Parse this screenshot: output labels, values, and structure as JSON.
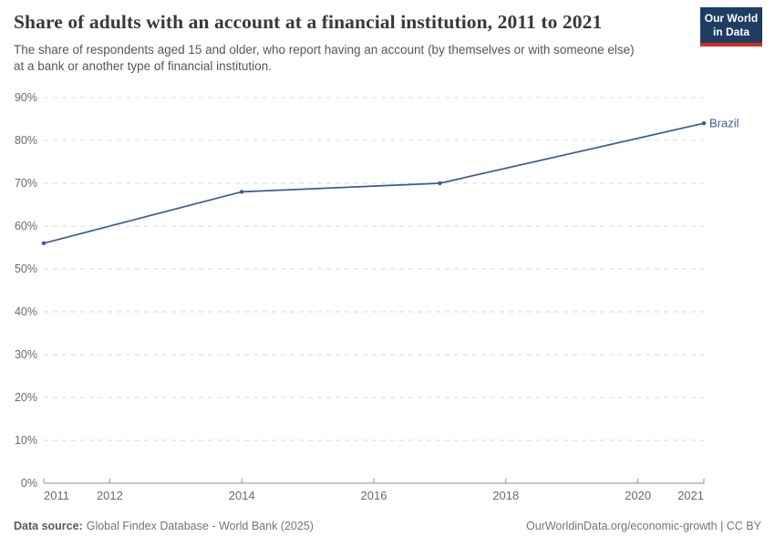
{
  "logo": {
    "line1": "Our World",
    "line2": "in Data"
  },
  "chart_data": {
    "type": "line",
    "title": "Share of adults with an account at a financial institution, 2011 to 2021",
    "subtitle": "The share of respondents aged 15 and older, who report having an account (by themselves or with someone else) at a bank or another type of financial institution.",
    "x": [
      2011,
      2014,
      2017,
      2021
    ],
    "series": [
      {
        "name": "Brazil",
        "values": [
          56,
          68,
          70,
          84
        ],
        "color": "#3c5a96"
      }
    ],
    "xlim": [
      2011,
      2021
    ],
    "ylim": [
      0,
      90
    ],
    "xticks": [
      2011,
      2012,
      2014,
      2016,
      2018,
      2020,
      2021
    ],
    "yticks": [
      0,
      10,
      20,
      30,
      40,
      50,
      60,
      70,
      80,
      90
    ],
    "ytick_suffix": "%",
    "xlabel": "",
    "ylabel": "",
    "grid": "horizontal-dashed",
    "legend_position": "end-of-line-label"
  },
  "footer": {
    "datasource_label": "Data source:",
    "datasource_value": "Global Findex Database - World Bank (2025)",
    "attribution": "OurWorldinData.org/economic-growth | CC BY"
  },
  "colors": {
    "line": "#3c5a96",
    "grid": "#dadada",
    "axis": "#8f8f8f",
    "tick_label": "#6b6b6b",
    "title": "#383838",
    "subtitle": "#565656",
    "footer": "#757575",
    "logo_bg": "#1d3d63",
    "logo_stripe": "#d42b22"
  }
}
